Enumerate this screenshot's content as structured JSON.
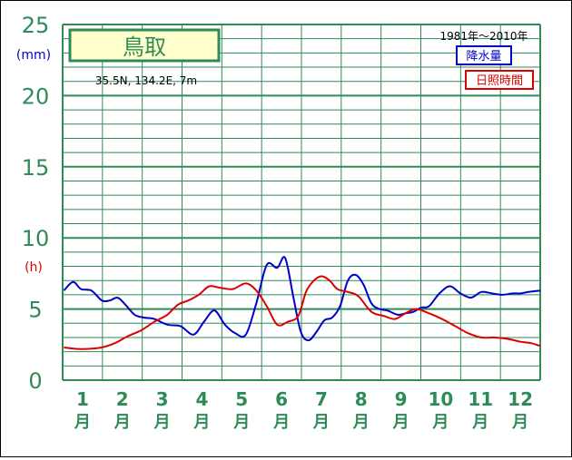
{
  "chart_data": {
    "type": "line",
    "station": {
      "name": "鳥取",
      "coords": "35.5N,  134.2E,  7m"
    },
    "period": "1981年〜2010年",
    "y_unit_precip": "(mm)",
    "y_unit_sun": "(h)",
    "ylim": [
      0,
      25
    ],
    "yticks": [
      "0",
      "5",
      "10",
      "15",
      "20",
      "25"
    ],
    "ytick_values": [
      0,
      5,
      10,
      15,
      20,
      25
    ],
    "months": [
      "1",
      "2",
      "3",
      "4",
      "5",
      "6",
      "7",
      "8",
      "9",
      "10",
      "11",
      "12"
    ],
    "month_suffix": "月",
    "xlim": [
      0,
      365
    ],
    "series": [
      {
        "name": "降水量",
        "color": "#0000cc",
        "x": [
          1,
          8,
          14,
          22,
          30,
          36,
          42,
          48,
          55,
          62,
          70,
          80,
          90,
          100,
          108,
          116,
          124,
          132,
          140,
          148,
          156,
          164,
          170,
          176,
          182,
          188,
          194,
          200,
          206,
          212,
          218,
          224,
          230,
          236,
          242,
          248,
          256,
          262,
          268,
          274,
          280,
          288,
          296,
          304,
          312,
          320,
          328,
          336,
          344,
          350,
          356,
          365
        ],
        "values": [
          6.3,
          6.9,
          6.4,
          6.3,
          5.6,
          5.6,
          5.8,
          5.3,
          4.6,
          4.4,
          4.3,
          3.9,
          3.8,
          3.2,
          4.1,
          4.9,
          3.9,
          3.3,
          3.2,
          5.4,
          8.1,
          7.9,
          8.6,
          6.0,
          3.4,
          2.8,
          3.4,
          4.2,
          4.4,
          5.2,
          7.0,
          7.4,
          6.7,
          5.4,
          5.0,
          4.9,
          4.6,
          4.7,
          4.8,
          5.1,
          5.2,
          6.1,
          6.6,
          6.1,
          5.8,
          6.2,
          6.1,
          6.0,
          6.1,
          6.1,
          6.2,
          6.3
        ]
      },
      {
        "name": "日照時間",
        "color": "#dd0000",
        "x": [
          1,
          10,
          20,
          30,
          40,
          50,
          60,
          70,
          80,
          88,
          96,
          104,
          112,
          120,
          130,
          140,
          148,
          156,
          164,
          172,
          180,
          186,
          192,
          198,
          204,
          210,
          218,
          226,
          236,
          246,
          254,
          262,
          270,
          280,
          290,
          300,
          310,
          320,
          330,
          340,
          350,
          358,
          365
        ],
        "values": [
          2.3,
          2.2,
          2.2,
          2.3,
          2.6,
          3.1,
          3.5,
          4.1,
          4.6,
          5.3,
          5.6,
          6.0,
          6.6,
          6.5,
          6.4,
          6.8,
          6.3,
          5.2,
          3.9,
          4.1,
          4.5,
          6.2,
          7.0,
          7.3,
          7.0,
          6.4,
          6.2,
          5.9,
          4.8,
          4.5,
          4.3,
          4.7,
          5.0,
          4.7,
          4.3,
          3.8,
          3.3,
          3.0,
          3.0,
          2.9,
          2.7,
          2.6,
          2.4
        ]
      }
    ]
  },
  "colors": {
    "axis_text": "#2e8b57",
    "grid": "#2e8b57",
    "precip_unit": "#0000cc",
    "sun_unit": "#dd0000",
    "station_box_bg": "#ffffcc",
    "station_box_border": "#2e8b57"
  }
}
